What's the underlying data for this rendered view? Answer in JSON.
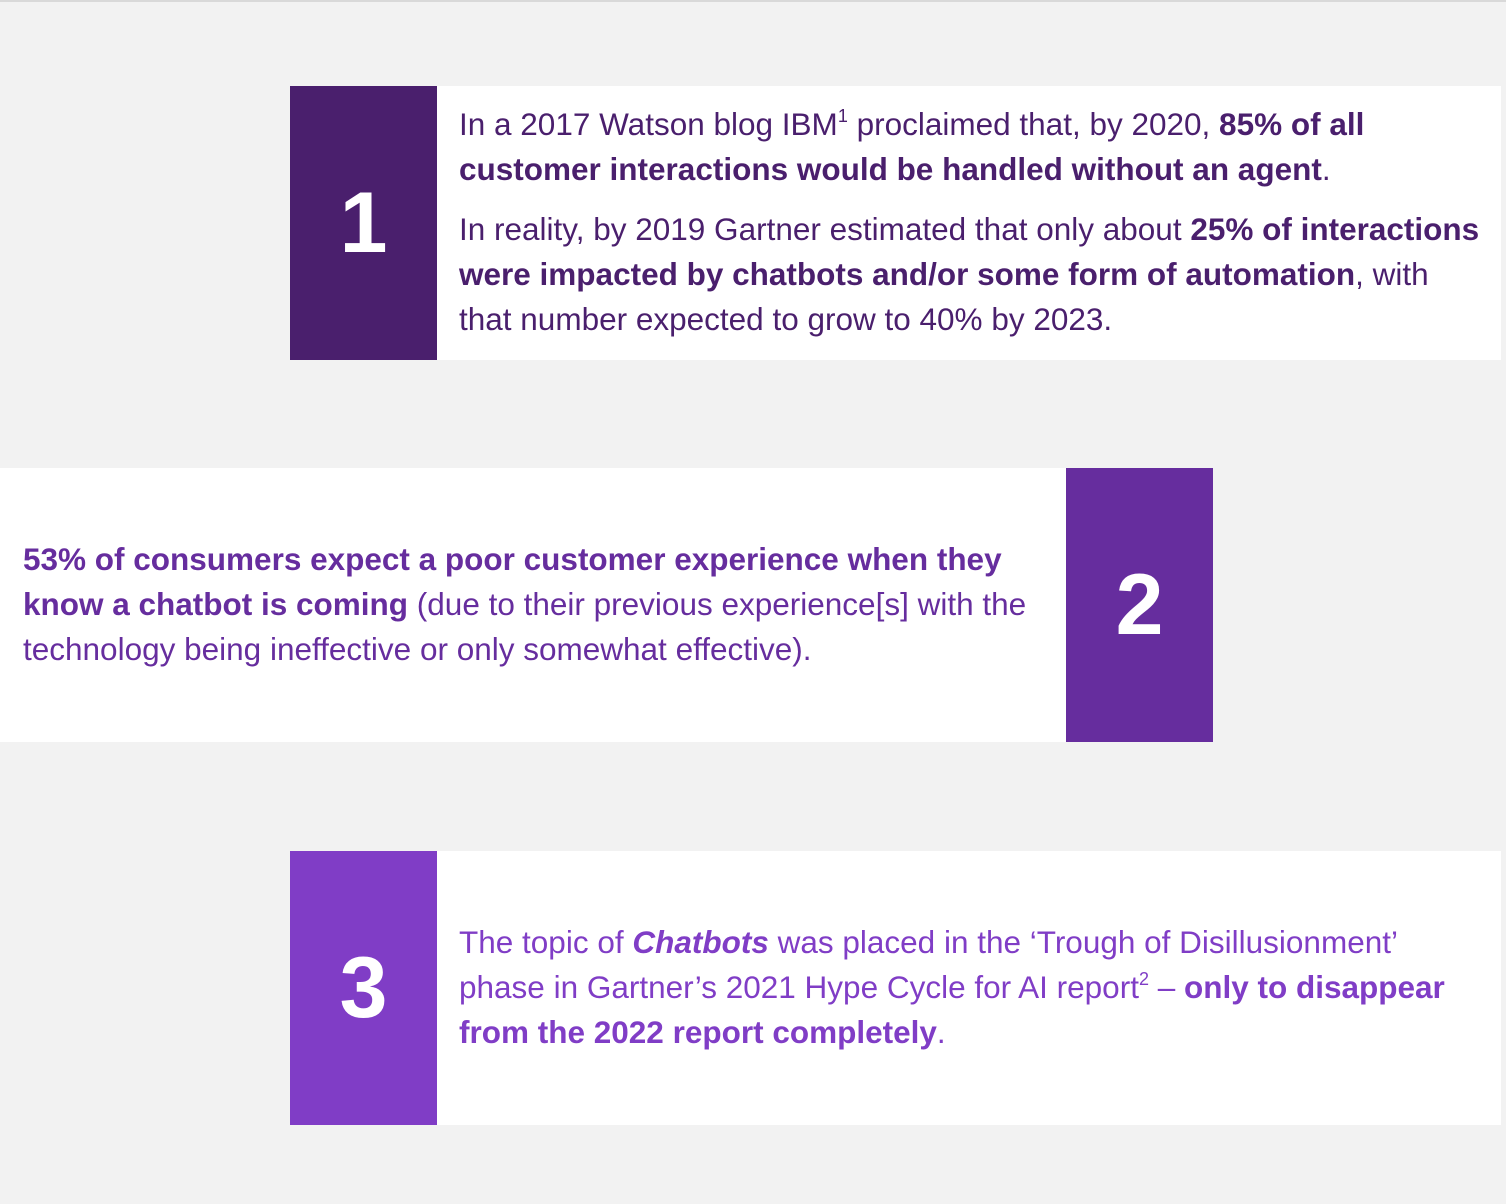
{
  "colors": {
    "background": "#f2f2f2",
    "card": "#ffffff",
    "item1_accent": "#4a1f6d",
    "item2_accent": "#662d9e",
    "item3_accent": "#803dc6"
  },
  "items": [
    {
      "number": "1",
      "para1": {
        "t1": "In a 2017 Watson blog IBM",
        "sup": "1",
        "t2": " proclaimed that, by 2020, ",
        "b1": "85% of all customer interactions would be handled without an agent",
        "t3": "."
      },
      "para2": {
        "t1": "In reality, by 2019 Gartner estimated that only about ",
        "b1": "25% of interactions were impacted by chatbots and/or some form of automation",
        "t2": ", with that number expected to grow to 40% by 2023."
      }
    },
    {
      "number": "2",
      "para1": {
        "b1": "53% of consumers expect a poor customer experience when they know a chatbot is coming",
        "t1": " (due to their previous experience[s] with the technology being ineffective or only somewhat effective)."
      }
    },
    {
      "number": "3",
      "para1": {
        "t1": "The topic of ",
        "bi1": "Chatbots",
        "t2": " was placed in the ‘Trough of Disillusionment’ phase in Gartner’s 2021 Hype Cycle for AI report",
        "sup": "2",
        "t3": " – ",
        "b1": "only to disappear from the 2022 report completely",
        "t4": "."
      }
    }
  ]
}
